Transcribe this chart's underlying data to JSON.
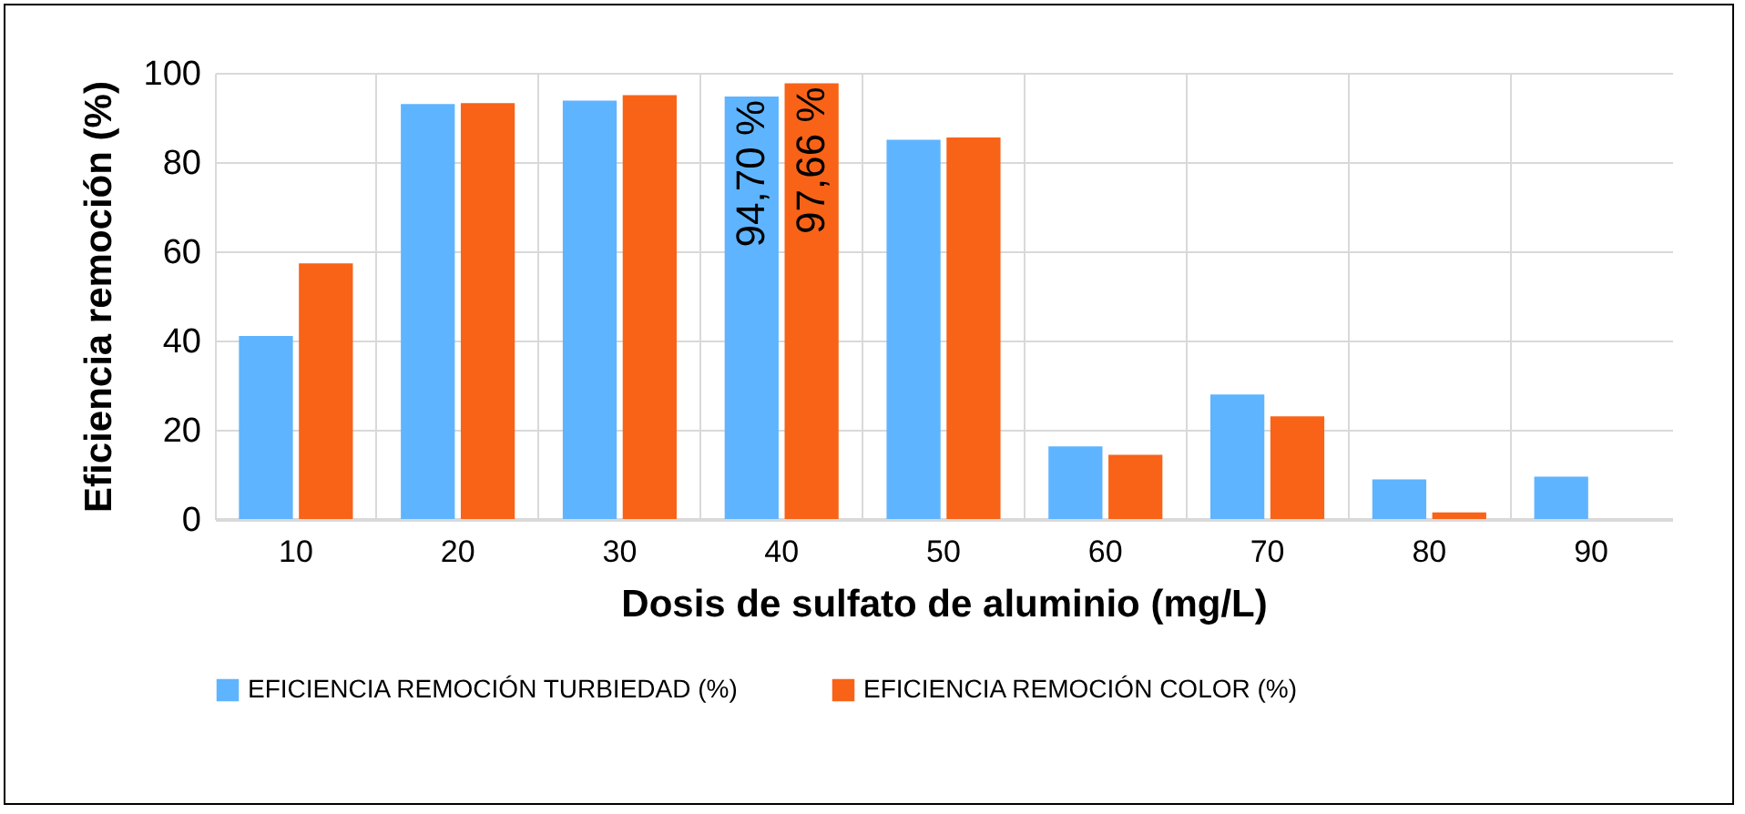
{
  "chart_data": {
    "type": "bar",
    "xlabel": "Dosis de sulfato de aluminio (mg/L)",
    "ylabel": "Eficiencia remoción (%)",
    "categories": [
      "10",
      "20",
      "30",
      "40",
      "50",
      "60",
      "70",
      "80",
      "90"
    ],
    "series": [
      {
        "name": "EFICIENCIA REMOCIÓN TURBIEDAD (%)",
        "color": "#5fb4ff",
        "values": [
          41,
          93,
          93.8,
          94.7,
          85,
          16.3,
          27.9,
          8.9,
          9.5
        ],
        "value_labels": [
          null,
          null,
          null,
          "94,70 %",
          null,
          null,
          null,
          null,
          null
        ]
      },
      {
        "name": "EFICIENCIA REMOCIÓN COLOR (%)",
        "color": "#f86318",
        "values": [
          57.3,
          93.2,
          95,
          97.66,
          85.5,
          14.4,
          23,
          1.5,
          null
        ],
        "value_labels": [
          null,
          null,
          null,
          "97,66 %",
          null,
          null,
          null,
          null,
          null
        ]
      }
    ],
    "ylim": [
      0,
      100
    ],
    "yticks": [
      0,
      20,
      40,
      60,
      80,
      100
    ],
    "grid": true,
    "legend": "bottom"
  }
}
